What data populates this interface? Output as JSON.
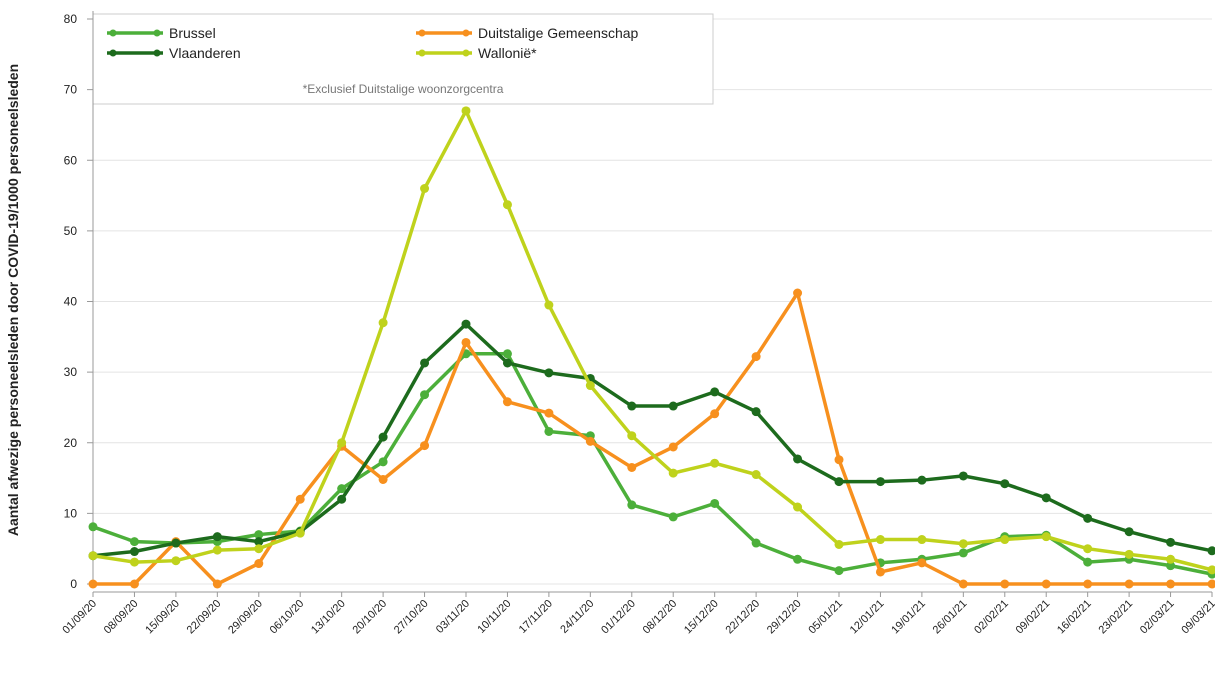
{
  "chart_data": {
    "type": "line",
    "y_label": "Aantal afwezige personeelsleden door COVID-19/1000 personeelsleden",
    "note": "*Exclusief Duitstalige woonzorgcentra",
    "categories": [
      "01/09/20",
      "08/09/20",
      "15/09/20",
      "22/09/20",
      "29/09/20",
      "06/10/20",
      "13/10/20",
      "20/10/20",
      "27/10/20",
      "03/11/20",
      "10/11/20",
      "17/11/20",
      "24/11/20",
      "01/12/20",
      "08/12/20",
      "15/12/20",
      "22/12/20",
      "29/12/20",
      "05/01/21",
      "12/01/21",
      "19/01/21",
      "26/01/21",
      "02/02/21",
      "09/02/21",
      "16/02/21",
      "23/02/21",
      "02/03/21",
      "09/03/21"
    ],
    "series": [
      {
        "name": "Brussel",
        "color": "#4caf3a",
        "values": [
          8.1,
          6,
          5.8,
          6,
          7,
          7.5,
          13.5,
          17.3,
          26.8,
          32.6,
          32.6,
          21.6,
          21,
          11.2,
          9.5,
          11.4,
          5.8,
          3.5,
          1.9,
          3,
          3.5,
          4.4,
          6.7,
          6.9,
          3.1,
          3.5,
          2.6,
          1.4
        ]
      },
      {
        "name": "Duitstalige Gemeenschap",
        "color": "#f7901e",
        "values": [
          0,
          0,
          6,
          0,
          2.9,
          12,
          19.5,
          14.8,
          19.6,
          34.2,
          25.8,
          24.2,
          20.2,
          16.5,
          19.4,
          24.1,
          32.2,
          41.2,
          17.6,
          1.7,
          3,
          0,
          0,
          0,
          0,
          0,
          0,
          0
        ]
      },
      {
        "name": "Vlaanderen",
        "color": "#1d6b1d",
        "values": [
          4,
          4.6,
          5.8,
          6.7,
          6,
          7.4,
          12,
          20.8,
          31.3,
          36.8,
          31.3,
          29.9,
          29.1,
          25.2,
          25.2,
          27.2,
          24.4,
          17.7,
          14.5,
          14.5,
          14.7,
          15.3,
          14.2,
          12.2,
          9.3,
          7.4,
          5.9,
          4.7
        ]
      },
      {
        "name": "Wallonië*",
        "color": "#bfd21c",
        "values": [
          4,
          3.1,
          3.3,
          4.8,
          5,
          7.2,
          20,
          37,
          56,
          67,
          53.7,
          39.5,
          28.1,
          21,
          15.7,
          17.1,
          15.5,
          10.9,
          5.6,
          6.3,
          6.3,
          5.7,
          6.3,
          6.7,
          5,
          4.2,
          3.5,
          2
        ]
      }
    ],
    "ylim": [
      0,
      80
    ],
    "yticks": [
      0,
      10,
      20,
      30,
      40,
      50,
      60,
      70,
      80
    ],
    "grid": true
  }
}
